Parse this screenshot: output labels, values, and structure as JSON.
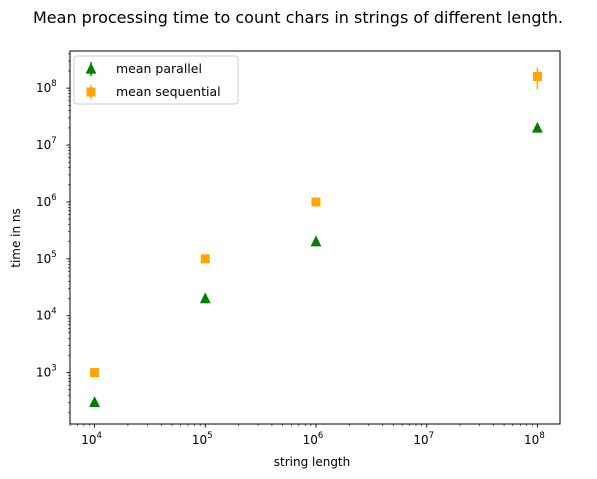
{
  "chart_data": {
    "type": "scatter",
    "title": "Mean processing time to count chars in strings of different length.",
    "xlabel": "string length",
    "ylabel": "time in ns",
    "xscale": "log",
    "yscale": "log",
    "xlim": [
      6000,
      160000000
    ],
    "ylim": [
      125,
      450000000
    ],
    "grid": false,
    "legend_position": "top-left",
    "x_ticks": [
      {
        "value": 10000,
        "base": "10",
        "exp": "4"
      },
      {
        "value": 100000,
        "base": "10",
        "exp": "5"
      },
      {
        "value": 1000000,
        "base": "10",
        "exp": "6"
      },
      {
        "value": 10000000,
        "base": "10",
        "exp": "7"
      },
      {
        "value": 100000000,
        "base": "10",
        "exp": "8"
      }
    ],
    "y_ticks": [
      {
        "value": 1000,
        "base": "10",
        "exp": "3"
      },
      {
        "value": 10000,
        "base": "10",
        "exp": "4"
      },
      {
        "value": 100000,
        "base": "10",
        "exp": "5"
      },
      {
        "value": 1000000,
        "base": "10",
        "exp": "6"
      },
      {
        "value": 10000000,
        "base": "10",
        "exp": "7"
      },
      {
        "value": 100000000,
        "base": "10",
        "exp": "8"
      }
    ],
    "series": [
      {
        "name": "mean parallel",
        "marker": "triangle",
        "color": "#008000",
        "x": [
          10000,
          100000,
          1000000,
          100000000
        ],
        "y": [
          300,
          20000,
          200000,
          20000000
        ],
        "err_low": [
          250,
          20000,
          200000,
          20000000
        ],
        "err_high": [
          350,
          20000,
          200000,
          20000000
        ]
      },
      {
        "name": "mean sequential",
        "marker": "square",
        "color": "#FFA500",
        "x": [
          10000,
          100000,
          1000000,
          100000000
        ],
        "y": [
          1000,
          100000,
          1000000,
          160000000
        ],
        "err_low": [
          1000,
          100000,
          1000000,
          95000000
        ],
        "err_high": [
          1000,
          100000,
          1000000,
          230000000
        ]
      }
    ]
  }
}
